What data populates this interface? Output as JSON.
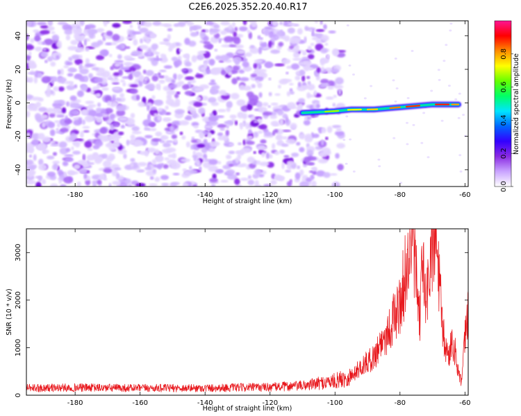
{
  "title": "C2E6.2025.352.20.40.R17",
  "chart_data": [
    {
      "type": "heatmap",
      "name": "spectrogram",
      "xlabel": "Height of straight line (km)",
      "ylabel": "Frequency (Hz)",
      "xlim": [
        -195,
        -59
      ],
      "ylim": [
        -50,
        49
      ],
      "xticks": [
        -180,
        -160,
        -140,
        -120,
        -100,
        -80,
        -60
      ],
      "yticks": [
        -40,
        -20,
        0,
        20,
        40
      ],
      "grid": false,
      "noise_region_km": [
        -195,
        -98
      ],
      "trace": {
        "description": "narrow near-zero frequency signal trace",
        "points": [
          {
            "x": -110,
            "y": -6
          },
          {
            "x": -100,
            "y": -5
          },
          {
            "x": -95,
            "y": -4
          },
          {
            "x": -88,
            "y": -4
          },
          {
            "x": -82,
            "y": -3
          },
          {
            "x": -76,
            "y": -2
          },
          {
            "x": -70,
            "y": -1
          },
          {
            "x": -62,
            "y": -1
          }
        ]
      },
      "colorbar": {
        "label": "Normalized spectral amplitude",
        "range": [
          0,
          1
        ],
        "ticks": [
          "0.0",
          "0.2",
          "0.4",
          "0.6",
          "0.8"
        ],
        "colors": [
          "#ffffff",
          "#c9a3ff",
          "#8a2be2",
          "#3300ff",
          "#0066ff",
          "#00e5ff",
          "#00ff66",
          "#66ff00",
          "#ffff00",
          "#ff8c00",
          "#ff0000",
          "#ff1493"
        ]
      }
    },
    {
      "type": "line",
      "name": "snr",
      "xlabel": "Height of straight line (km)",
      "ylabel": "SNR (10 * v/v)",
      "xlim": [
        -195,
        -59
      ],
      "ylim": [
        0,
        3500
      ],
      "xticks": [
        -180,
        -160,
        -140,
        -120,
        -100,
        -80,
        -60
      ],
      "yticks": [
        0,
        1000,
        2000,
        3000
      ],
      "grid": false,
      "series": [
        {
          "name": "SNR",
          "color": "#e8191e",
          "x": [
            -195,
            -180,
            -160,
            -140,
            -120,
            -110,
            -105,
            -100,
            -95,
            -92,
            -90,
            -88,
            -86,
            -84,
            -82,
            -80,
            -78.5,
            -77,
            -76,
            -75,
            -74,
            -73,
            -72,
            -70.5,
            -69,
            -68,
            -67,
            -66,
            -65,
            -64,
            -63,
            -62,
            -61,
            -60,
            -59
          ],
          "y": [
            150,
            160,
            150,
            150,
            170,
            200,
            250,
            300,
            400,
            600,
            700,
            800,
            1100,
            1300,
            1600,
            1900,
            2500,
            3000,
            3500,
            2400,
            1500,
            2900,
            1800,
            3000,
            3300,
            2500,
            1400,
            1000,
            800,
            1200,
            900,
            500,
            250,
            1200,
            1800
          ]
        }
      ]
    }
  ]
}
